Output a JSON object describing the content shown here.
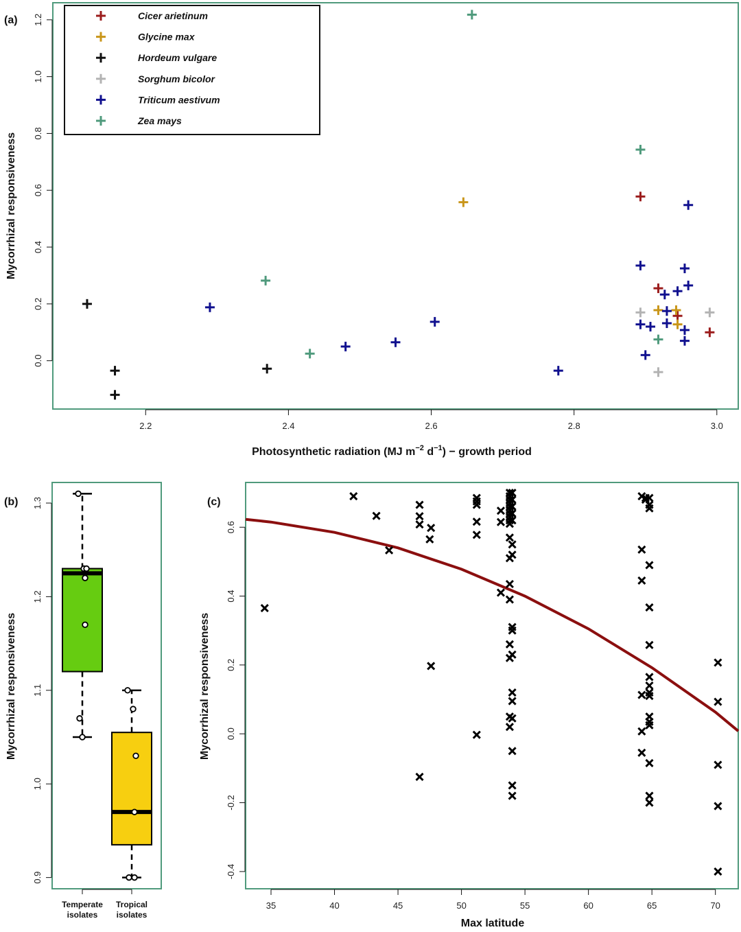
{
  "colors": {
    "frame": "#4f9a7c",
    "cicer": "#9b1c1c",
    "glycine": "#c9961a",
    "hordeum": "#111111",
    "sorghum": "#b3b3b3",
    "triticum": "#10108f",
    "zea": "#4f9a7c",
    "curve": "#8b0f0f",
    "temperate_box": "#66cc11",
    "tropical_box": "#f7cf10"
  },
  "chart_data": [
    {
      "panel": "(a)",
      "type": "scatter",
      "xlabel_main": "Photosynthetic radiation (MJ m",
      "xlabel_sup1": "−2",
      "xlabel_mid": " d",
      "xlabel_sup2": "−1",
      "xlabel_end": ") − growth period",
      "ylabel": "Mycorrhizal responsiveness",
      "xlim": [
        2.07,
        3.03
      ],
      "ylim": [
        -0.17,
        1.26
      ],
      "xticks": [
        "2.2",
        "2.4",
        "2.6",
        "2.8",
        "3.0"
      ],
      "yticks": [
        "0.0",
        "0.2",
        "0.4",
        "0.6",
        "0.8",
        "1.0",
        "1.2"
      ],
      "legend_position": "top-left",
      "series": [
        {
          "name": "Cicer arietinum",
          "color_key": "cicer",
          "points": [
            [
              2.893,
              0.578
            ],
            [
              2.918,
              0.255
            ],
            [
              2.945,
              0.158
            ],
            [
              2.99,
              0.1
            ]
          ]
        },
        {
          "name": "Glycine max",
          "color_key": "glycine",
          "points": [
            [
              2.645,
              0.558
            ],
            [
              2.918,
              0.178
            ],
            [
              2.943,
              0.178
            ],
            [
              2.945,
              0.128
            ]
          ]
        },
        {
          "name": "Hordeum vulgare",
          "color_key": "hordeum",
          "points": [
            [
              2.118,
              0.2
            ],
            [
              2.157,
              -0.035
            ],
            [
              2.157,
              -0.12
            ],
            [
              2.37,
              -0.028
            ]
          ]
        },
        {
          "name": "Sorghum bicolor",
          "color_key": "sorghum",
          "points": [
            [
              2.893,
              0.17
            ],
            [
              2.99,
              0.17
            ],
            [
              2.918,
              -0.04
            ]
          ]
        },
        {
          "name": "Triticum aestivum",
          "color_key": "triticum",
          "points": [
            [
              2.29,
              0.188
            ],
            [
              2.48,
              0.05
            ],
            [
              2.55,
              0.065
            ],
            [
              2.605,
              0.137
            ],
            [
              2.778,
              -0.035
            ],
            [
              2.893,
              0.335
            ],
            [
              2.893,
              0.128
            ],
            [
              2.9,
              0.02
            ],
            [
              2.907,
              0.12
            ],
            [
              2.927,
              0.233
            ],
            [
              2.93,
              0.175
            ],
            [
              2.93,
              0.132
            ],
            [
              2.945,
              0.245
            ],
            [
              2.955,
              0.325
            ],
            [
              2.955,
              0.108
            ],
            [
              2.955,
              0.07
            ],
            [
              2.96,
              0.265
            ],
            [
              2.96,
              0.548
            ]
          ]
        },
        {
          "name": "Zea mays",
          "color_key": "zea",
          "points": [
            [
              2.657,
              1.218
            ],
            [
              2.368,
              0.282
            ],
            [
              2.43,
              0.025
            ],
            [
              2.893,
              0.743
            ],
            [
              2.918,
              0.075
            ]
          ]
        }
      ]
    },
    {
      "panel": "(b)",
      "type": "box",
      "ylabel": "Mycorrhizal responsiveness",
      "ylim": [
        0.888,
        1.322
      ],
      "yticks": [
        "0.9",
        "1.0",
        "1.1",
        "1.2",
        "1.3"
      ],
      "categories": [
        "Temperate isolates",
        "Tropical isolates"
      ],
      "category_labels": [
        [
          "Temperate",
          "isolates"
        ],
        [
          "Tropical",
          "isolates"
        ]
      ],
      "boxes": [
        {
          "name": "Temperate isolates",
          "color_key": "temperate_box",
          "whisker_low": 1.05,
          "q1": 1.12,
          "median": 1.225,
          "q3": 1.23,
          "whisker_high": 1.31,
          "points": [
            1.31,
            1.23,
            1.23,
            1.22,
            1.17,
            1.07,
            1.05
          ]
        },
        {
          "name": "Tropical isolates",
          "color_key": "tropical_box",
          "whisker_low": 0.9,
          "q1": 0.935,
          "median": 0.97,
          "q3": 1.055,
          "whisker_high": 1.1,
          "points": [
            1.1,
            1.08,
            1.03,
            0.97,
            0.9,
            0.9
          ]
        }
      ]
    },
    {
      "panel": "(c)",
      "type": "scatter",
      "xlabel": "Max latitude",
      "ylabel": "Mycorrhizal responsiveness",
      "xlim": [
        33.0,
        71.8
      ],
      "ylim": [
        -0.45,
        0.73
      ],
      "xticks": [
        "35",
        "40",
        "45",
        "50",
        "55",
        "60",
        "65",
        "70"
      ],
      "yticks": [
        "-0.4",
        "-0.2",
        "0.0",
        "0.2",
        "0.4",
        "0.6"
      ],
      "fit_curve": {
        "x": [
          33.0,
          35,
          40,
          45,
          50,
          55,
          60,
          65,
          70,
          71.8
        ],
        "y": [
          0.623,
          0.615,
          0.585,
          0.54,
          0.478,
          0.4,
          0.305,
          0.192,
          0.063,
          0.008
        ]
      },
      "points": [
        [
          34.5,
          0.365
        ],
        [
          41.5,
          0.69
        ],
        [
          43.3,
          0.633
        ],
        [
          44.3,
          0.533
        ],
        [
          46.7,
          0.665
        ],
        [
          46.7,
          0.632
        ],
        [
          46.7,
          0.608
        ],
        [
          46.7,
          -0.125
        ],
        [
          47.5,
          0.565
        ],
        [
          47.6,
          0.598
        ],
        [
          47.6,
          0.197
        ],
        [
          51.2,
          0.685
        ],
        [
          51.2,
          0.675
        ],
        [
          51.2,
          0.665
        ],
        [
          51.2,
          0.616
        ],
        [
          51.2,
          0.578
        ],
        [
          51.2,
          -0.003
        ],
        [
          53.1,
          0.648
        ],
        [
          53.1,
          0.615
        ],
        [
          53.1,
          0.41
        ],
        [
          53.8,
          0.7
        ],
        [
          53.8,
          0.69
        ],
        [
          53.8,
          0.68
        ],
        [
          53.8,
          0.67
        ],
        [
          53.8,
          0.66
        ],
        [
          53.8,
          0.65
        ],
        [
          53.8,
          0.64
        ],
        [
          53.8,
          0.63
        ],
        [
          53.8,
          0.62
        ],
        [
          53.8,
          0.61
        ],
        [
          53.8,
          0.57
        ],
        [
          53.8,
          0.51
        ],
        [
          53.8,
          0.435
        ],
        [
          53.8,
          0.39
        ],
        [
          53.8,
          0.26
        ],
        [
          53.8,
          0.22
        ],
        [
          53.8,
          0.05
        ],
        [
          53.8,
          0.02
        ],
        [
          54.0,
          0.7
        ],
        [
          54.0,
          0.68
        ],
        [
          54.0,
          0.66
        ],
        [
          54.0,
          0.64
        ],
        [
          54.0,
          0.62
        ],
        [
          54.0,
          0.55
        ],
        [
          54.0,
          0.52
        ],
        [
          54.0,
          0.31
        ],
        [
          54.0,
          0.3
        ],
        [
          54.0,
          0.23
        ],
        [
          54.0,
          0.12
        ],
        [
          54.0,
          0.095
        ],
        [
          54.0,
          0.045
        ],
        [
          54.0,
          -0.05
        ],
        [
          54.0,
          -0.15
        ],
        [
          54.0,
          -0.18
        ],
        [
          64.2,
          0.69
        ],
        [
          64.2,
          0.535
        ],
        [
          64.2,
          0.445
        ],
        [
          64.2,
          0.113
        ],
        [
          64.2,
          0.007
        ],
        [
          64.2,
          -0.055
        ],
        [
          64.5,
          0.685
        ],
        [
          64.5,
          0.68
        ],
        [
          64.8,
          0.685
        ],
        [
          64.8,
          0.665
        ],
        [
          64.8,
          0.655
        ],
        [
          64.8,
          0.49
        ],
        [
          64.8,
          0.367
        ],
        [
          64.8,
          0.258
        ],
        [
          64.8,
          0.165
        ],
        [
          64.8,
          0.14
        ],
        [
          64.8,
          0.12
        ],
        [
          64.8,
          0.11
        ],
        [
          64.8,
          0.05
        ],
        [
          64.8,
          0.035
        ],
        [
          64.8,
          0.025
        ],
        [
          64.8,
          -0.085
        ],
        [
          64.8,
          -0.18
        ],
        [
          64.8,
          -0.2
        ],
        [
          70.2,
          0.207
        ],
        [
          70.2,
          0.093
        ],
        [
          70.2,
          -0.09
        ],
        [
          70.2,
          -0.21
        ],
        [
          70.2,
          -0.4
        ]
      ]
    }
  ]
}
